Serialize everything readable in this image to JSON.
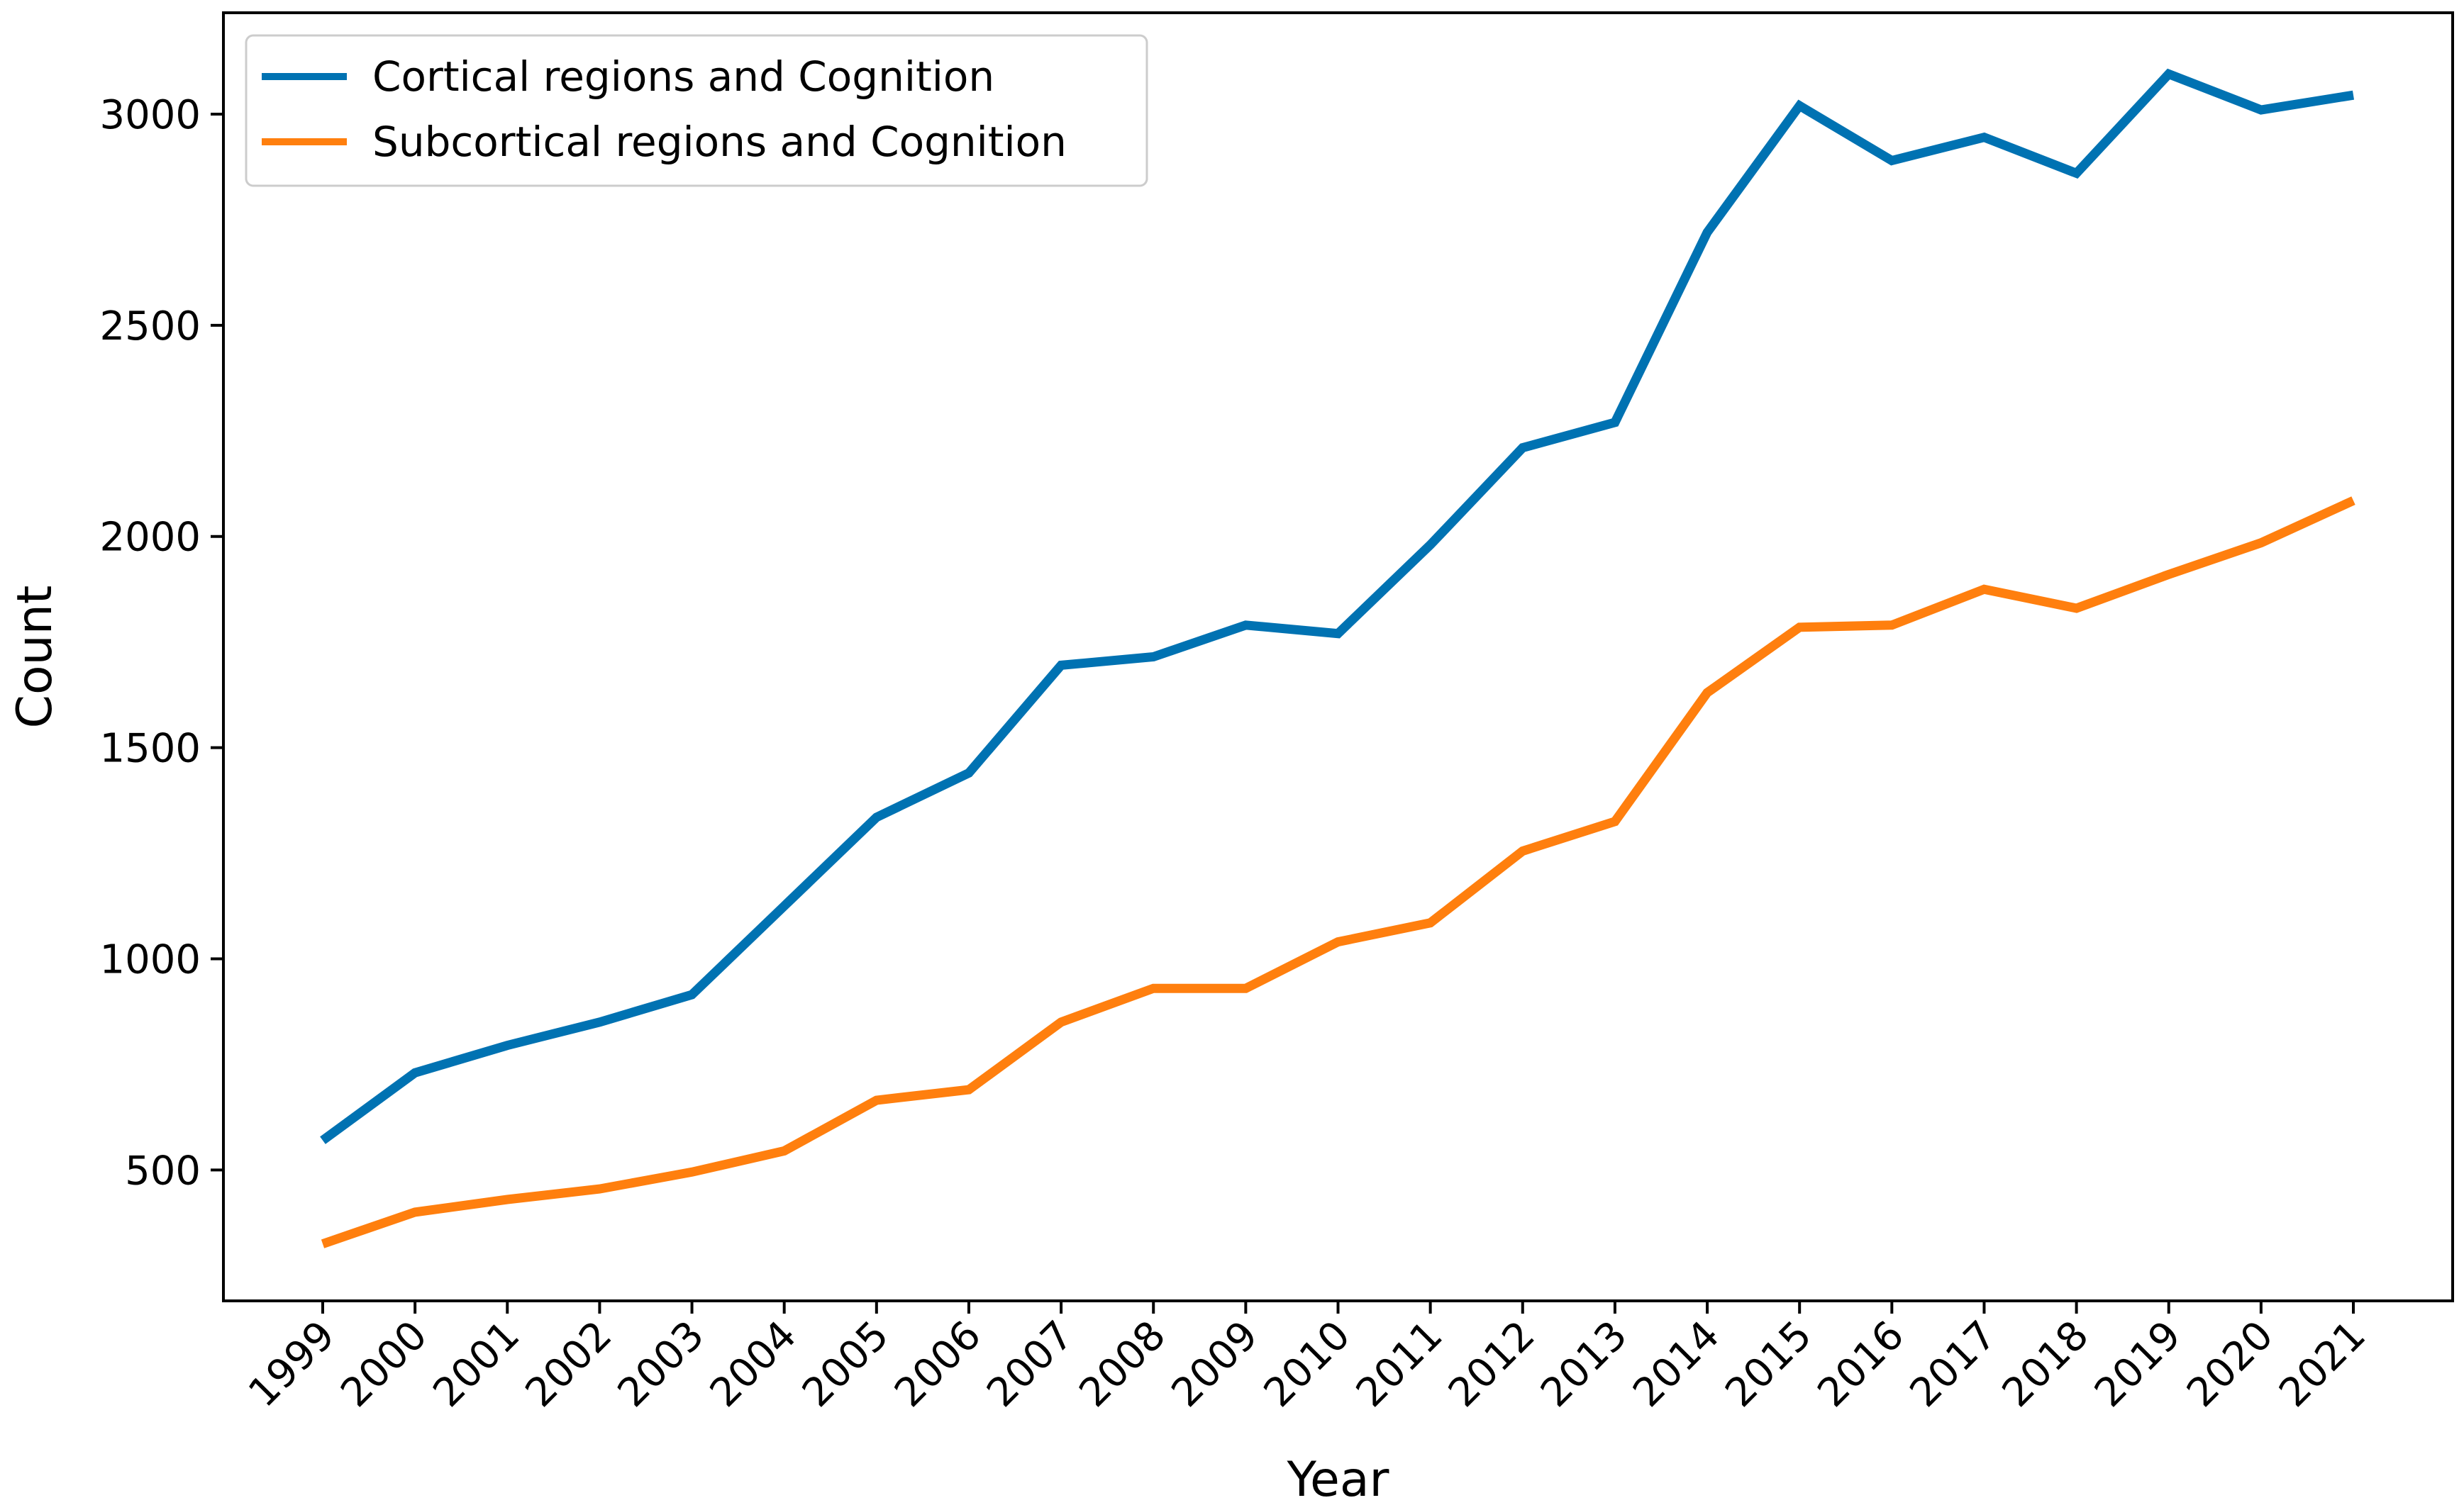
{
  "chart_data": {
    "type": "line",
    "title": "",
    "xlabel": "Year",
    "ylabel": "Count",
    "categories": [
      "1999",
      "2000",
      "2001",
      "2002",
      "2003",
      "2004",
      "2005",
      "2006",
      "2007",
      "2008",
      "2009",
      "2010",
      "2011",
      "2012",
      "2013",
      "2014",
      "2015",
      "2016",
      "2017",
      "2018",
      "2019",
      "2020",
      "2021"
    ],
    "ylim": [
      190,
      3240
    ],
    "yticks": [
      500,
      1000,
      1500,
      2000,
      2500,
      3000
    ],
    "grid": false,
    "legend_position": "upper-left",
    "series": [
      {
        "name": "Cortical regions and Cognition",
        "color": "#0072b2",
        "values": [
          570,
          730,
          795,
          850,
          915,
          1125,
          1335,
          1440,
          1695,
          1715,
          1790,
          1770,
          1980,
          2210,
          2270,
          2720,
          3020,
          2890,
          2945,
          2860,
          3095,
          3010,
          3045
        ]
      },
      {
        "name": "Subcortical regions and Cognition",
        "color": "#ff7f0e",
        "values": [
          325,
          400,
          430,
          455,
          495,
          545,
          665,
          690,
          850,
          930,
          930,
          1040,
          1085,
          1255,
          1325,
          1630,
          1785,
          1790,
          1875,
          1830,
          1910,
          1985,
          2085
        ]
      }
    ]
  }
}
